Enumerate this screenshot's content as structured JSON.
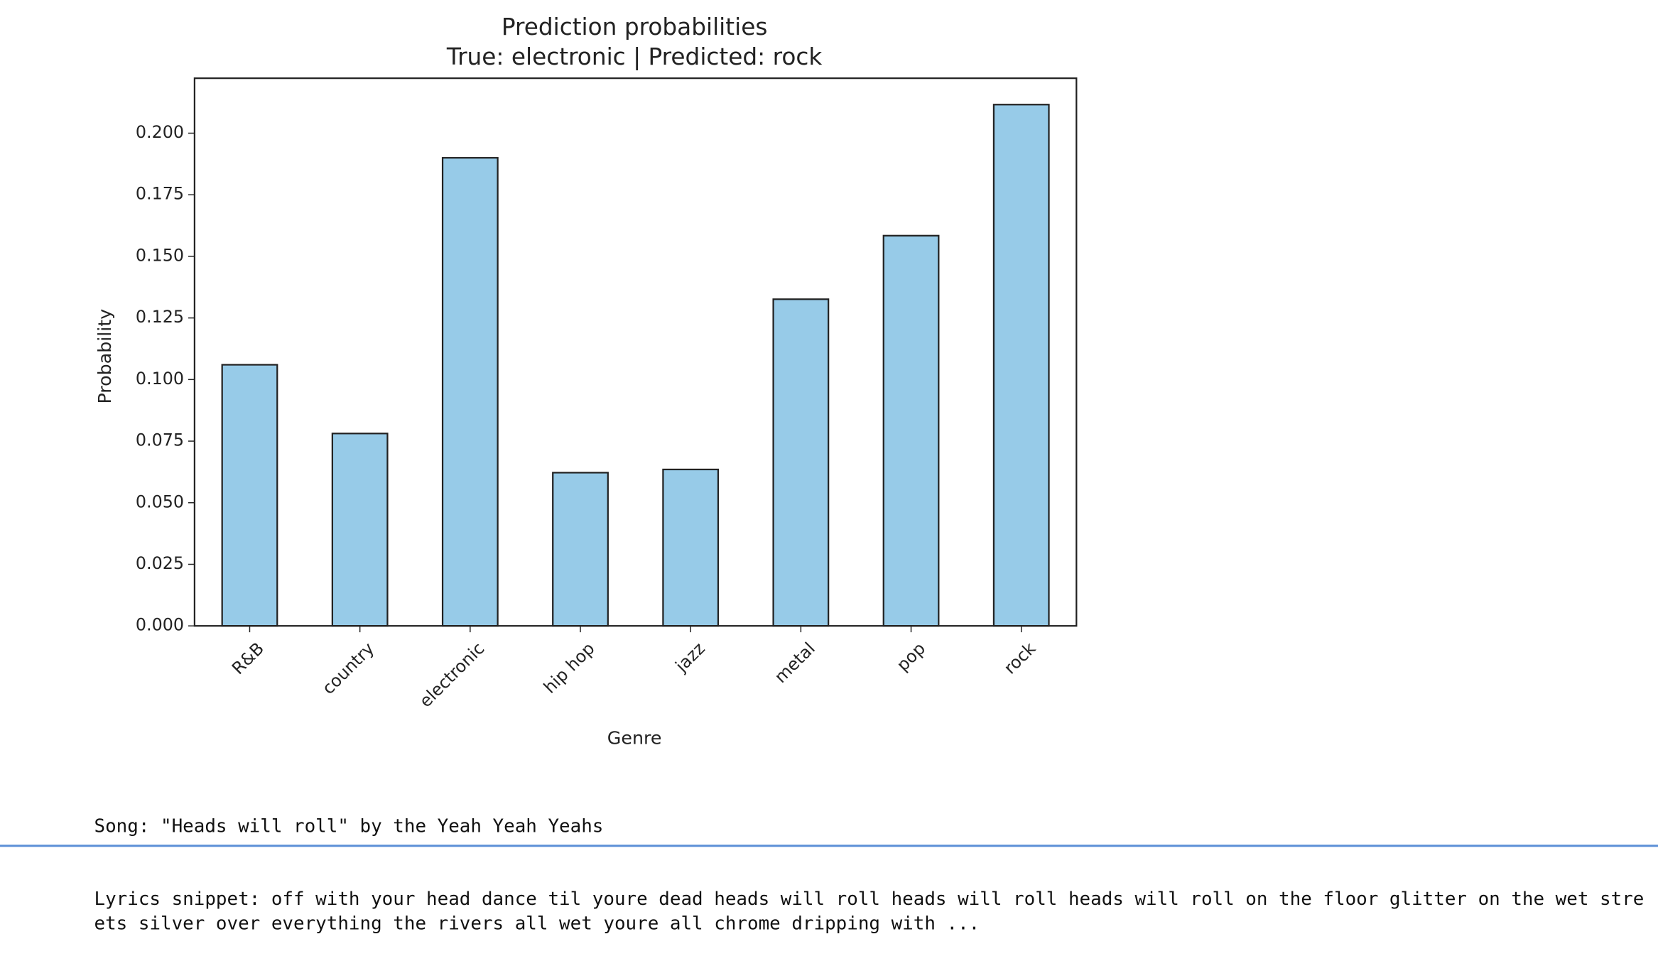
{
  "chart_data": {
    "type": "bar",
    "title": "Prediction probabilities",
    "subtitle": "True: electronic | Predicted: rock",
    "x_label": "Genre",
    "y_label": "Probability",
    "categories": [
      "R&B",
      "country",
      "electronic",
      "hip hop",
      "jazz",
      "metal",
      "pop",
      "rock"
    ],
    "values": [
      0.106,
      0.0781,
      0.19,
      0.0622,
      0.0635,
      0.1326,
      0.1584,
      0.2116
    ],
    "color": "#97cbe8",
    "ylim": [
      0,
      0.2223
    ],
    "yticks": [
      {
        "value": 0,
        "label": "0.000"
      },
      {
        "value": 0.025,
        "label": "0.025"
      },
      {
        "value": 0.05,
        "label": "0.050"
      },
      {
        "value": 0.075,
        "label": "0.075"
      },
      {
        "value": 0.1,
        "label": "0.100"
      },
      {
        "value": 0.125,
        "label": "0.125"
      },
      {
        "value": 0.15,
        "label": "0.150"
      },
      {
        "value": 0.175,
        "label": "0.175"
      },
      {
        "value": 0.2,
        "label": "0.200"
      }
    ],
    "grid": false
  },
  "output": {
    "song": "Song: \"Heads will roll\" by the Yeah Yeah Yeahs",
    "lyrics": "Lyrics snippet: off with your head dance til youre dead heads will roll heads will roll heads will roll on the floor glitter on the wet streets silver over everything the rivers all wet youre all chrome dripping with ..."
  }
}
